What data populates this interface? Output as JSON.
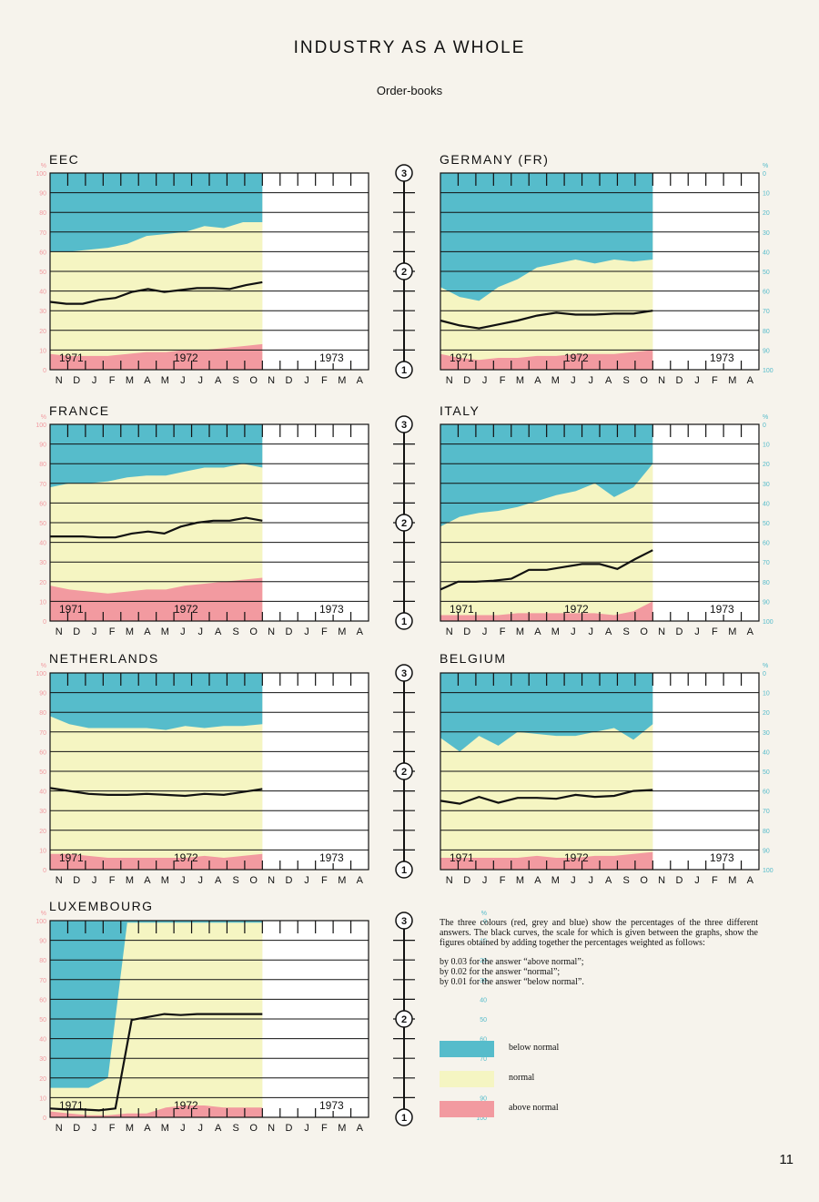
{
  "page": {
    "title": "INDUSTRY AS A WHOLE",
    "subtitle": "Order-books",
    "page_number": "11"
  },
  "colors": {
    "below": "#56bccb",
    "normal": "#f5f5c2",
    "above": "#f29aa0",
    "empty": "#ffffff",
    "curve": "#111111",
    "left_axis": "#f29aa0",
    "right_axis": "#56bccb"
  },
  "axes": {
    "months": [
      "N",
      "D",
      "J",
      "F",
      "M",
      "A",
      "M",
      "J",
      "J",
      "A",
      "S",
      "O",
      "N",
      "D",
      "J",
      "F",
      "M",
      "A"
    ],
    "years": [
      "1971",
      "1972",
      "1973"
    ],
    "percent_symbol": "%",
    "left_ticks": [
      "0",
      "10",
      "20",
      "30",
      "40",
      "50",
      "60",
      "70",
      "80",
      "90",
      "100"
    ],
    "right_ticks": [
      "0",
      "10",
      "20",
      "30",
      "40",
      "50",
      "60",
      "70",
      "80",
      "90",
      "100"
    ],
    "scale_marks": [
      "3",
      "2",
      "1"
    ]
  },
  "legend": {
    "explanation": "The three colours (red, grey and blue) show the percentages of the three different answers. The black curves, the scale for which is given between the graphs, show the figures obtained by adding together the percentages weighted as follows:",
    "weights": [
      "by 0.03 for the answer “above normal”;",
      "by 0.02 for the answer “normal”;",
      "by 0.01 for the answer “below normal”."
    ],
    "items": [
      {
        "label": "below normal",
        "color": "#56bccb"
      },
      {
        "label": "normal",
        "color": "#f5f5c2"
      },
      {
        "label": "above normal",
        "color": "#f29aa0"
      }
    ]
  },
  "chart_data": [
    {
      "type": "area",
      "name": "EEC",
      "title": "EEC",
      "above": [
        8,
        7,
        7,
        7,
        8,
        9,
        9,
        10,
        10,
        11,
        12,
        13
      ],
      "below": [
        40,
        40,
        39,
        38,
        36,
        32,
        31,
        30,
        27,
        28,
        25,
        25
      ],
      "index": [
        1.69,
        1.67,
        1.67,
        1.71,
        1.73,
        1.79,
        1.82,
        1.79,
        1.81,
        1.83,
        1.83,
        1.82,
        1.86,
        1.89
      ]
    },
    {
      "type": "area",
      "name": "GERMANY (FR)",
      "title": "GERMANY (FR)",
      "above": [
        8,
        6,
        5,
        6,
        6,
        7,
        7,
        8,
        8,
        8,
        9,
        10
      ],
      "below": [
        58,
        63,
        65,
        58,
        54,
        48,
        46,
        44,
        46,
        44,
        45,
        44
      ],
      "index": [
        1.5,
        1.45,
        1.42,
        1.46,
        1.5,
        1.55,
        1.58,
        1.56,
        1.56,
        1.57,
        1.57,
        1.6
      ]
    },
    {
      "type": "area",
      "name": "FRANCE",
      "title": "FRANCE",
      "above": [
        18,
        16,
        15,
        14,
        15,
        16,
        16,
        18,
        19,
        20,
        21,
        22
      ],
      "below": [
        32,
        30,
        30,
        29,
        27,
        26,
        26,
        24,
        22,
        22,
        20,
        22
      ],
      "index": [
        1.86,
        1.86,
        1.86,
        1.85,
        1.85,
        1.89,
        1.91,
        1.89,
        1.96,
        2.0,
        2.02,
        2.02,
        2.05,
        2.02
      ]
    },
    {
      "type": "area",
      "name": "ITALY",
      "title": "ITALY",
      "above": [
        3,
        3,
        3,
        3,
        4,
        4,
        4,
        4,
        4,
        3,
        5,
        10
      ],
      "below": [
        52,
        47,
        45,
        44,
        42,
        39,
        36,
        34,
        30,
        37,
        32,
        20
      ],
      "index": [
        1.32,
        1.4,
        1.4,
        1.41,
        1.43,
        1.52,
        1.52,
        1.55,
        1.58,
        1.58,
        1.53,
        1.63,
        1.72
      ]
    },
    {
      "type": "area",
      "name": "NETHERLANDS",
      "title": "NETHERLANDS",
      "above": [
        8,
        8,
        7,
        6,
        6,
        6,
        6,
        6,
        7,
        6,
        7,
        8
      ],
      "below": [
        22,
        26,
        28,
        28,
        28,
        28,
        29,
        27,
        28,
        27,
        27,
        26
      ],
      "index": [
        1.83,
        1.8,
        1.77,
        1.76,
        1.76,
        1.77,
        1.76,
        1.75,
        1.77,
        1.76,
        1.79,
        1.82
      ]
    },
    {
      "type": "area",
      "name": "BELGIUM",
      "title": "BELGIUM",
      "above": [
        6,
        6,
        6,
        6,
        6,
        7,
        6,
        6,
        7,
        7,
        8,
        9
      ],
      "below": [
        33,
        40,
        32,
        37,
        30,
        31,
        32,
        32,
        30,
        28,
        34,
        26
      ],
      "index": [
        1.7,
        1.67,
        1.74,
        1.68,
        1.73,
        1.73,
        1.72,
        1.76,
        1.74,
        1.75,
        1.8,
        1.81
      ]
    },
    {
      "type": "area",
      "name": "LUXEMBOURG",
      "title": "LUXEMBOURG",
      "above": [
        3,
        2,
        1,
        1,
        2,
        2,
        5,
        6,
        6,
        5,
        5,
        5
      ],
      "below": [
        85,
        85,
        85,
        80,
        1,
        1,
        1,
        1,
        1,
        1,
        1,
        1
      ],
      "index": [
        1.09,
        1.08,
        1.08,
        1.07,
        1.09,
        1.99,
        2.02,
        2.05,
        2.04,
        2.05,
        2.05,
        2.05,
        2.05,
        2.05
      ]
    }
  ]
}
